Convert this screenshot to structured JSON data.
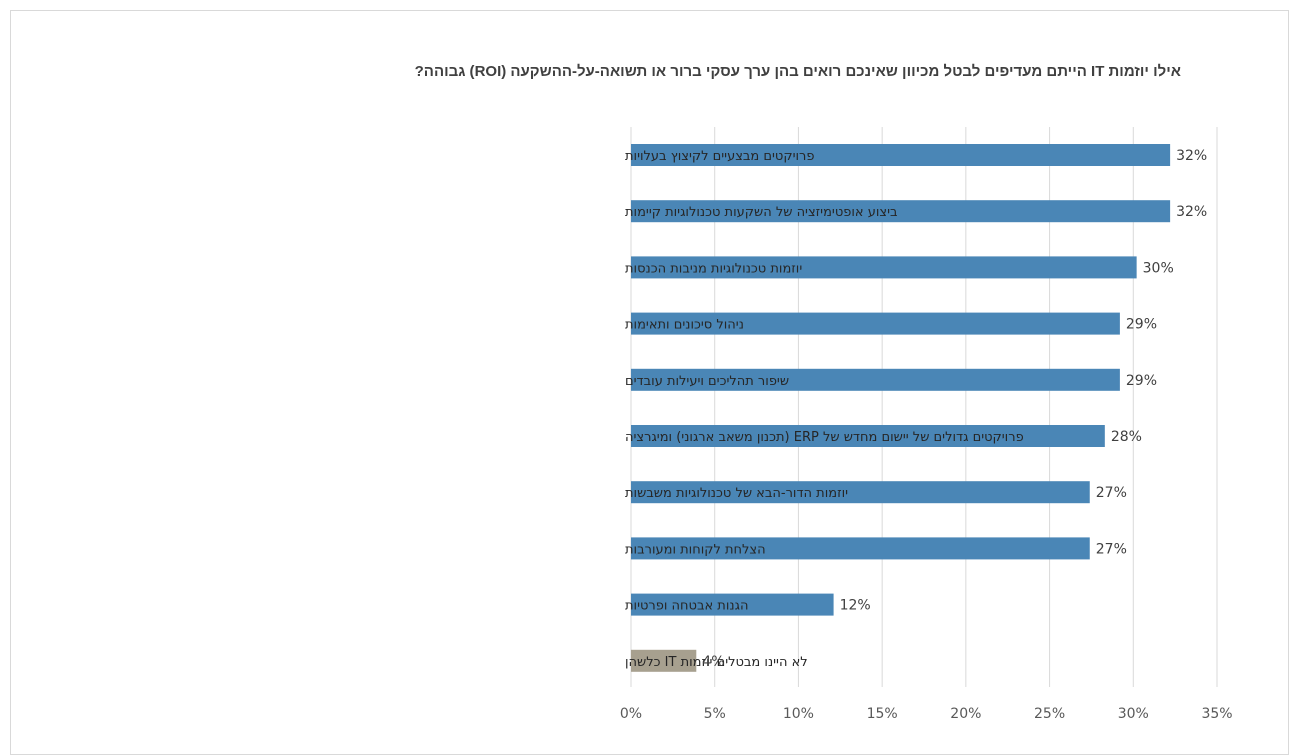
{
  "chart_data": {
    "type": "bar",
    "orientation": "horizontal",
    "title": "אילו יוזמות IT הייתם מעדיפים לבטל מכיוון שאינכם רואים בהן ערך עסקי ברור או תשואה-על-ההשקעה (ROI) גבוהה?",
    "xlabel": "",
    "ylabel": "",
    "xlim": [
      0,
      35
    ],
    "grid": true,
    "ticks": [
      "0%",
      "5%",
      "10%",
      "15%",
      "20%",
      "25%",
      "30%",
      "35%"
    ],
    "categories": [
      "פרויקטים מבצעיים לקיצוץ בעלויות",
      "ביצוע אופטימיזציה של השקעות טכנולוגיות קיימות",
      "יוזמות טכנולוגיות מניבות הכנסות",
      "ניהול סיכונים ותאימות",
      "שיפור תהליכים ויעילות עובדים",
      "פרויקטים גדולים של יישום מחדש של ERP (תכנון משאב ארגוני) ומיגרציה",
      "יוזמות הדור-הבא של טכנולוגיות משבשות",
      "הצלחת לקוחות ומעורבות",
      "הגנות אבטחה ופרטיות",
      "לא היינו מבטלים יוזמות IT כלשהן"
    ],
    "values": [
      32,
      32,
      30,
      29,
      29,
      28,
      27,
      27,
      12,
      4
    ],
    "value_labels": [
      "32%",
      "32%",
      "30%",
      "29%",
      "29%",
      "28%",
      "27%",
      "27%",
      "12%",
      "4%"
    ],
    "bar_values_exact": [
      32.2,
      32.2,
      30.2,
      29.2,
      29.2,
      28.3,
      27.4,
      27.4,
      12.1,
      3.9
    ],
    "colors": {
      "bar": "#4a86b6",
      "highlight_bar": "#a7a08f",
      "highlight_index": 9,
      "grid": "#d9d9d9"
    }
  }
}
